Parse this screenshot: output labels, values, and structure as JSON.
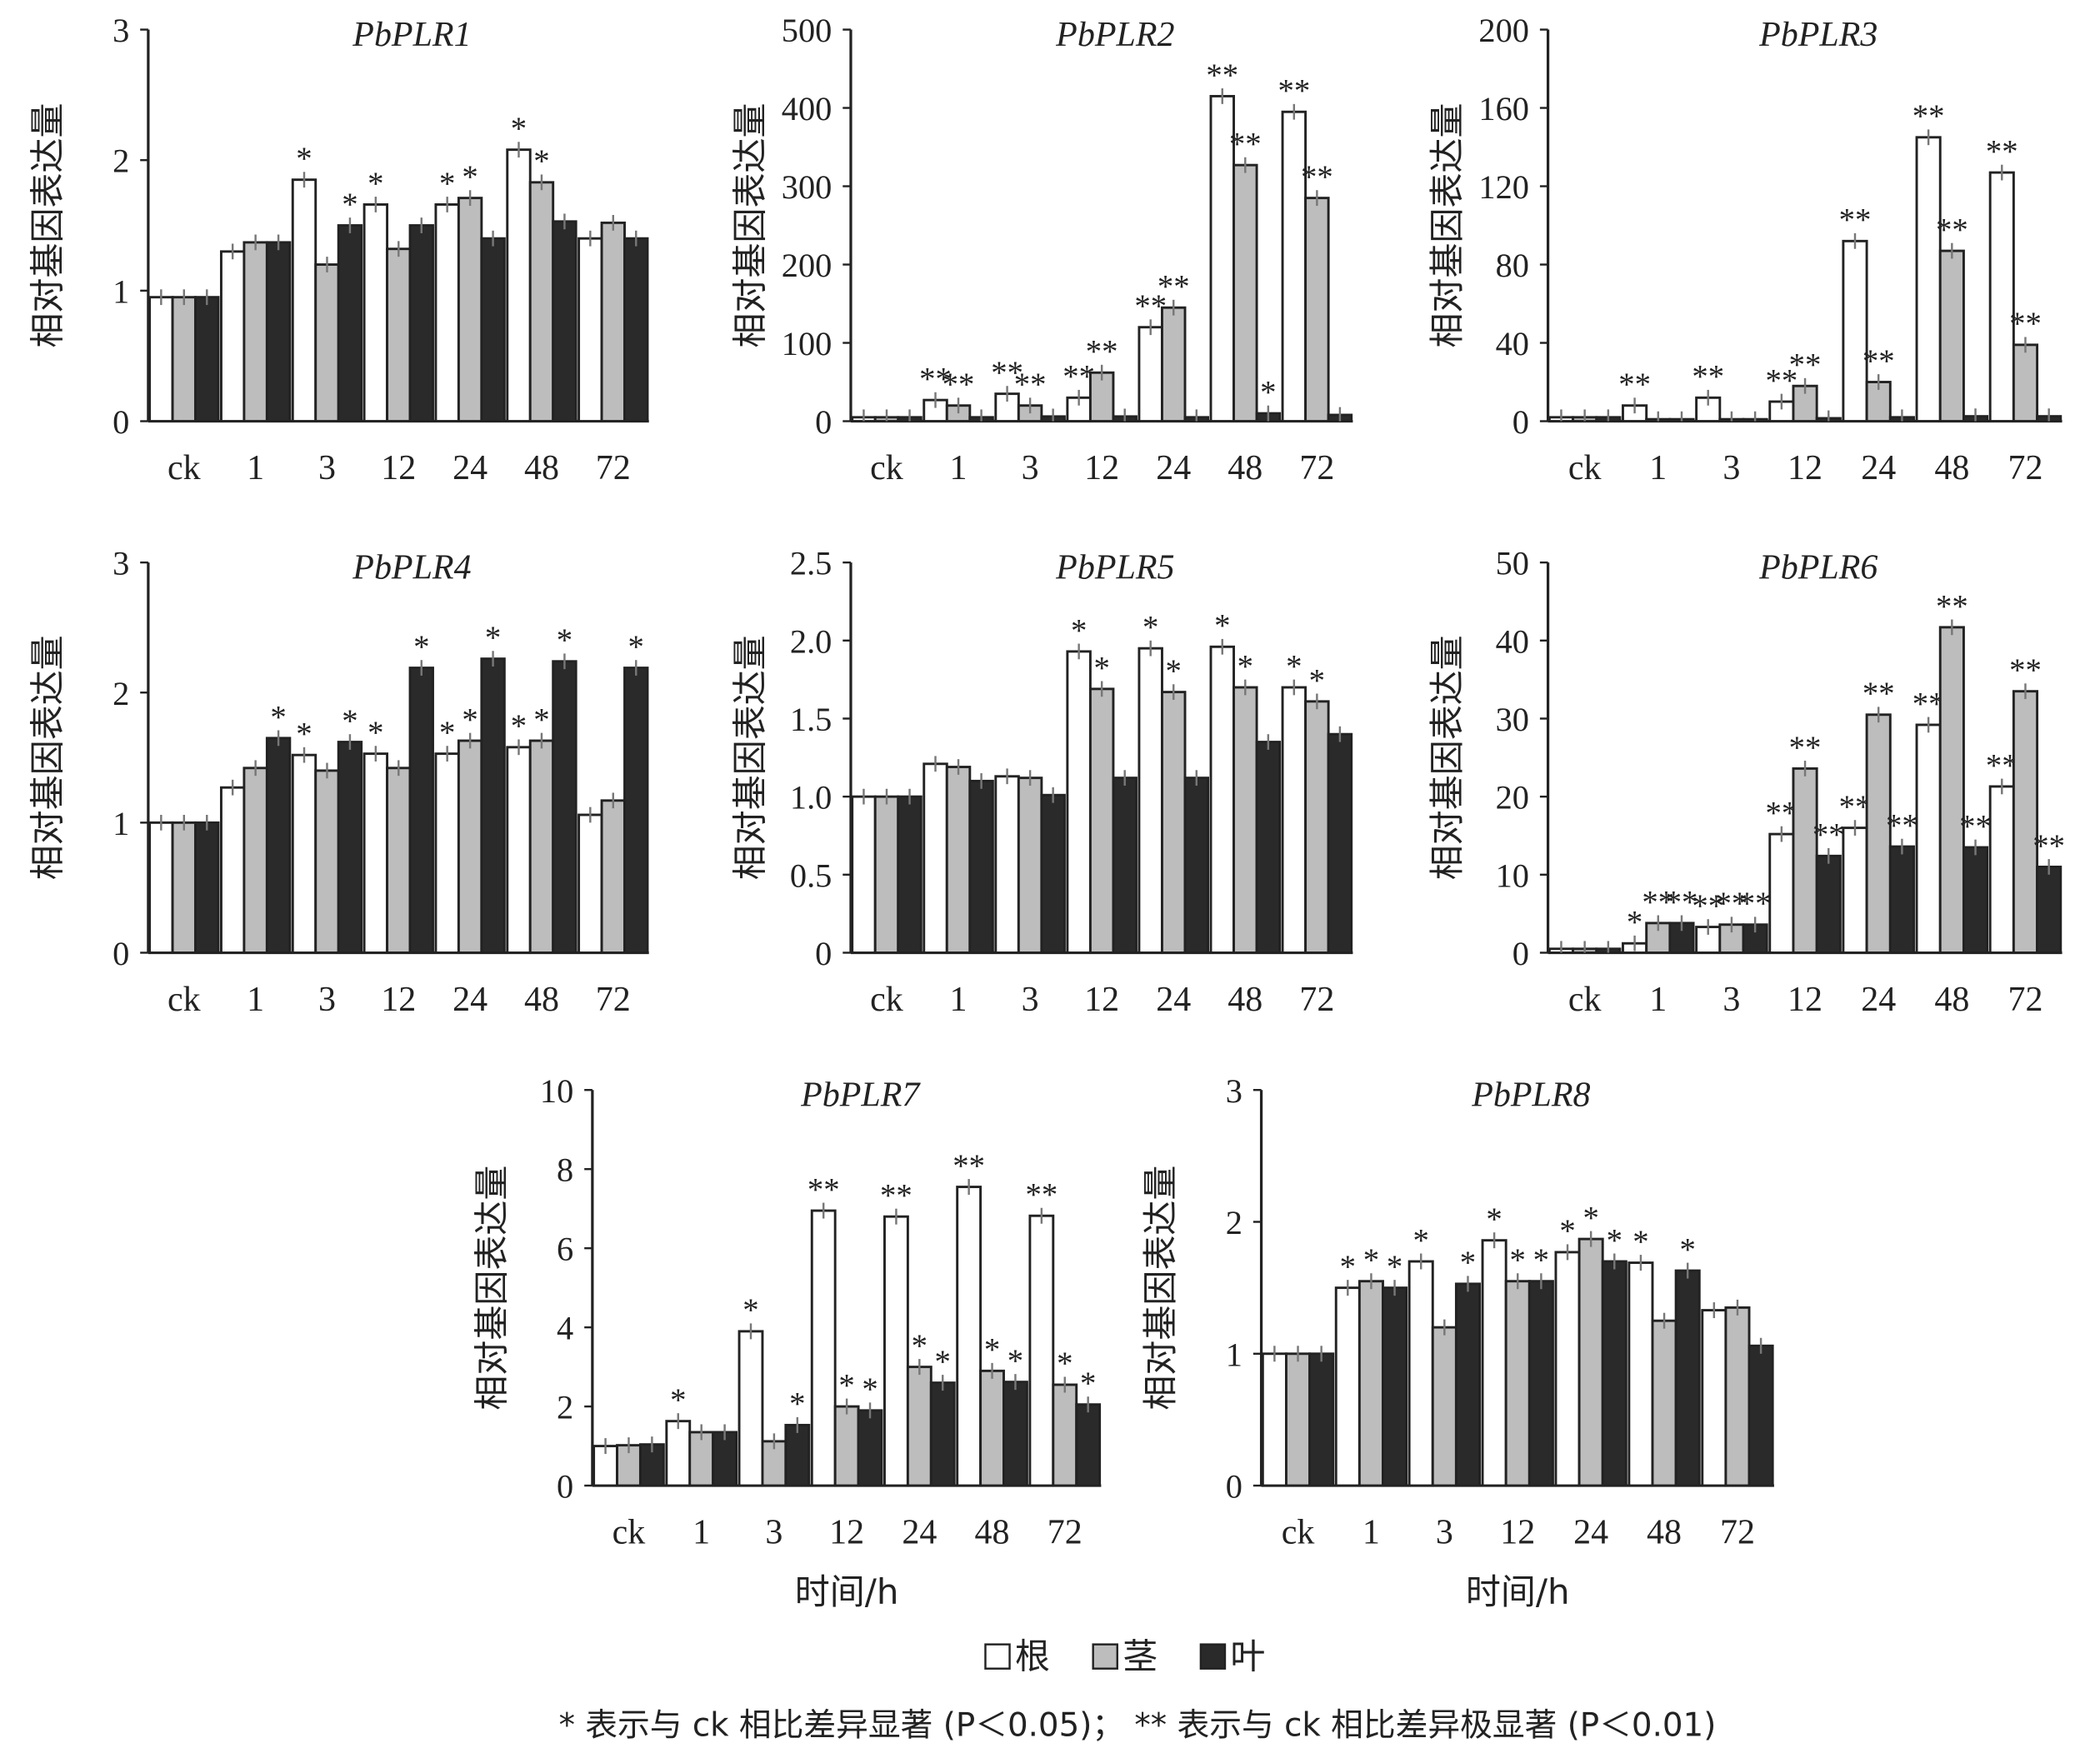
{
  "colors": {
    "root": "#ffffff",
    "stem": "#bdbdbd",
    "leaf": "#2a2a2a",
    "error": "#777777"
  },
  "legend": {
    "items": [
      {
        "label": "根",
        "color": "#ffffff"
      },
      {
        "label": "茎",
        "color": "#bdbdbd"
      },
      {
        "label": "叶",
        "color": "#2a2a2a"
      }
    ]
  },
  "footnote": "* 表示与 ck 相比差异显著 (P＜0.05)； ** 表示与 ck 相比差异极显著 (P＜0.01)",
  "chart_data": [
    {
      "type": "bar",
      "title": "PbPLR1",
      "ylabel": "相对基因表达量",
      "xlabel": "",
      "categories": [
        "ck",
        "1",
        "3",
        "12",
        "24",
        "48",
        "72"
      ],
      "ylim": [
        0,
        3
      ],
      "yticks": [
        "0",
        "1",
        "2",
        "3"
      ],
      "series": [
        {
          "name": "根",
          "values": [
            0.95,
            1.3,
            1.85,
            1.66,
            1.66,
            2.08,
            1.4
          ],
          "sig": [
            "",
            "",
            "*",
            "*",
            "*",
            "*",
            ""
          ]
        },
        {
          "name": "茎",
          "values": [
            0.95,
            1.37,
            1.2,
            1.32,
            1.71,
            1.83,
            1.52
          ],
          "sig": [
            "",
            "",
            "",
            "",
            "*",
            "*",
            ""
          ]
        },
        {
          "name": "叶",
          "values": [
            0.95,
            1.37,
            1.5,
            1.5,
            1.4,
            1.53,
            1.4
          ],
          "sig": [
            "",
            "",
            "*",
            "",
            "",
            "",
            ""
          ]
        }
      ]
    },
    {
      "type": "bar",
      "title": "PbPLR2",
      "ylabel": "相对基因表达量",
      "xlabel": "",
      "categories": [
        "ck",
        "1",
        "3",
        "12",
        "24",
        "48",
        "72"
      ],
      "ylim": [
        0,
        500
      ],
      "yticks": [
        "0",
        "100",
        "200",
        "300",
        "400",
        "500"
      ],
      "series": [
        {
          "name": "根",
          "values": [
            5,
            27,
            35,
            30,
            120,
            415,
            395
          ],
          "sig": [
            "",
            "**",
            "**",
            "**",
            "**",
            "**",
            "**"
          ]
        },
        {
          "name": "茎",
          "values": [
            5,
            20,
            20,
            62,
            145,
            327,
            285
          ],
          "sig": [
            "",
            "**",
            "**",
            "**",
            "**",
            "**",
            "**"
          ]
        },
        {
          "name": "叶",
          "values": [
            5,
            5,
            6,
            6,
            5,
            10,
            8
          ],
          "sig": [
            "",
            "",
            "",
            "",
            "",
            "*",
            ""
          ]
        }
      ]
    },
    {
      "type": "bar",
      "title": "PbPLR3",
      "ylabel": "相对基因表达量",
      "xlabel": "",
      "categories": [
        "ck",
        "1",
        "3",
        "12",
        "24",
        "48",
        "72"
      ],
      "ylim": [
        0,
        200
      ],
      "yticks": [
        "0",
        "40",
        "80",
        "120",
        "160",
        "200"
      ],
      "series": [
        {
          "name": "根",
          "values": [
            2,
            8,
            12,
            10,
            92,
            145,
            127
          ],
          "sig": [
            "",
            "**",
            "**",
            "**",
            "**",
            "**",
            "**"
          ]
        },
        {
          "name": "茎",
          "values": [
            2,
            1,
            1,
            18,
            20,
            87,
            39
          ],
          "sig": [
            "",
            "",
            "",
            "**",
            "**",
            "**",
            "**"
          ]
        },
        {
          "name": "叶",
          "values": [
            2,
            1,
            1,
            1.5,
            2,
            2.5,
            2.5
          ],
          "sig": [
            "",
            "",
            "",
            "",
            "",
            "",
            ""
          ]
        }
      ]
    },
    {
      "type": "bar",
      "title": "PbPLR4",
      "ylabel": "相对基因表达量",
      "xlabel": "",
      "categories": [
        "ck",
        "1",
        "3",
        "12",
        "24",
        "48",
        "72"
      ],
      "ylim": [
        0,
        3
      ],
      "yticks": [
        "0",
        "1",
        "2",
        "3"
      ],
      "series": [
        {
          "name": "根",
          "values": [
            1,
            1.27,
            1.52,
            1.53,
            1.53,
            1.58,
            1.06
          ],
          "sig": [
            "",
            "",
            "*",
            "*",
            "*",
            "*",
            ""
          ]
        },
        {
          "name": "茎",
          "values": [
            1,
            1.42,
            1.4,
            1.42,
            1.63,
            1.63,
            1.17
          ],
          "sig": [
            "",
            "",
            "",
            "",
            "*",
            "*",
            ""
          ]
        },
        {
          "name": "叶",
          "values": [
            1,
            1.65,
            1.62,
            2.19,
            2.26,
            2.24,
            2.19
          ],
          "sig": [
            "",
            "*",
            "*",
            "*",
            "*",
            "*",
            "*"
          ]
        }
      ]
    },
    {
      "type": "bar",
      "title": "PbPLR5",
      "ylabel": "相对基因表达量",
      "xlabel": "",
      "categories": [
        "ck",
        "1",
        "3",
        "12",
        "24",
        "48",
        "72"
      ],
      "ylim": [
        0,
        2.5
      ],
      "yticks": [
        "0",
        "0.5",
        "1.0",
        "1.5",
        "2.0",
        "2.5"
      ],
      "series": [
        {
          "name": "根",
          "values": [
            1,
            1.21,
            1.13,
            1.93,
            1.95,
            1.96,
            1.7
          ],
          "sig": [
            "",
            "",
            "",
            "*",
            "*",
            "*",
            "*"
          ]
        },
        {
          "name": "茎",
          "values": [
            1,
            1.19,
            1.12,
            1.69,
            1.67,
            1.7,
            1.61
          ],
          "sig": [
            "",
            "",
            "",
            "*",
            "*",
            "*",
            "*"
          ]
        },
        {
          "name": "叶",
          "values": [
            1,
            1.1,
            1.01,
            1.12,
            1.12,
            1.35,
            1.4
          ],
          "sig": [
            "",
            "",
            "",
            "",
            "",
            "",
            ""
          ]
        }
      ]
    },
    {
      "type": "bar",
      "title": "PbPLR6",
      "ylabel": "相对基因表达量",
      "xlabel": "",
      "categories": [
        "ck",
        "1",
        "3",
        "12",
        "24",
        "48",
        "72"
      ],
      "ylim": [
        0,
        50
      ],
      "yticks": [
        "0",
        "10",
        "20",
        "30",
        "40",
        "50"
      ],
      "series": [
        {
          "name": "根",
          "values": [
            0.5,
            1.2,
            3.3,
            15.2,
            16,
            29.2,
            21.3
          ],
          "sig": [
            "",
            "*",
            "**",
            "**",
            "**",
            "**",
            "**"
          ]
        },
        {
          "name": "茎",
          "values": [
            0.5,
            3.8,
            3.6,
            23.6,
            30.5,
            41.7,
            33.5
          ],
          "sig": [
            "",
            "**",
            "**",
            "**",
            "**",
            "**",
            "**"
          ]
        },
        {
          "name": "叶",
          "values": [
            0.5,
            3.8,
            3.6,
            12.4,
            13.6,
            13.5,
            11
          ],
          "sig": [
            "",
            "**",
            "**",
            "**",
            "**",
            "**",
            "**"
          ]
        }
      ]
    },
    {
      "type": "bar",
      "title": "PbPLR7",
      "ylabel": "相对基因表达量",
      "xlabel": "时间/h",
      "categories": [
        "ck",
        "1",
        "3",
        "12",
        "24",
        "48",
        "72"
      ],
      "ylim": [
        0,
        10
      ],
      "yticks": [
        "0",
        "2",
        "4",
        "6",
        "8",
        "10"
      ],
      "series": [
        {
          "name": "根",
          "values": [
            1,
            1.63,
            3.9,
            6.95,
            6.8,
            7.55,
            6.82
          ],
          "sig": [
            "",
            "*",
            "*",
            "**",
            "**",
            "**",
            "**"
          ]
        },
        {
          "name": "茎",
          "values": [
            1.02,
            1.35,
            1.12,
            2,
            3,
            2.9,
            2.55
          ],
          "sig": [
            "",
            "",
            "",
            "*",
            "*",
            "*",
            "*"
          ]
        },
        {
          "name": "叶",
          "values": [
            1.04,
            1.35,
            1.53,
            1.9,
            2.6,
            2.62,
            2.05
          ],
          "sig": [
            "",
            "",
            "*",
            "*",
            "*",
            "*",
            "*"
          ]
        }
      ]
    },
    {
      "type": "bar",
      "title": "PbPLR8",
      "ylabel": "相对基因表达量",
      "xlabel": "时间/h",
      "categories": [
        "ck",
        "1",
        "3",
        "12",
        "24",
        "48",
        "72"
      ],
      "ylim": [
        0,
        3
      ],
      "yticks": [
        "0",
        "1",
        "2",
        "3"
      ],
      "series": [
        {
          "name": "根",
          "values": [
            1,
            1.5,
            1.7,
            1.86,
            1.77,
            1.69,
            1.33
          ],
          "sig": [
            "",
            "*",
            "*",
            "*",
            "*",
            "*",
            ""
          ]
        },
        {
          "name": "茎",
          "values": [
            1,
            1.55,
            1.2,
            1.55,
            1.87,
            1.25,
            1.35
          ],
          "sig": [
            "",
            "*",
            "",
            "*",
            "*",
            "",
            ""
          ]
        },
        {
          "name": "叶",
          "values": [
            1,
            1.5,
            1.53,
            1.55,
            1.7,
            1.63,
            1.06
          ],
          "sig": [
            "",
            "*",
            "*",
            "*",
            "*",
            "*",
            ""
          ]
        }
      ]
    }
  ]
}
